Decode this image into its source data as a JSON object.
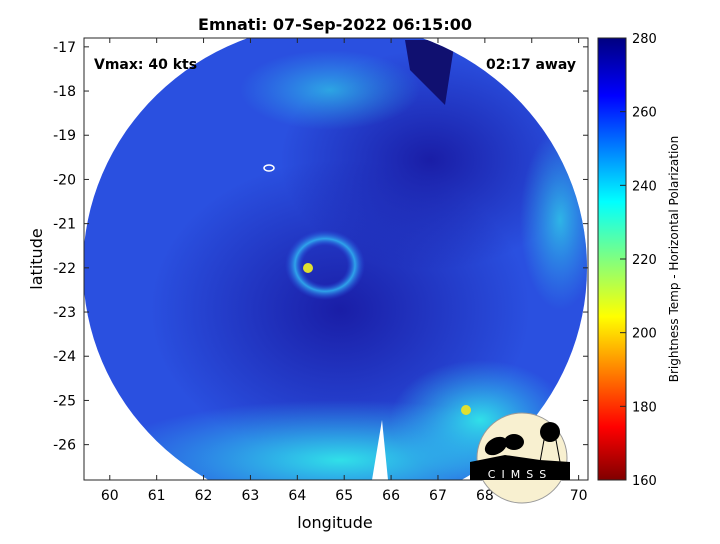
{
  "title": "Emnati: 07-Sep-2022 06:15:00",
  "vmax_label": "Vmax: 40 kts",
  "time_label": "02:17 away",
  "xlabel": "longitude",
  "ylabel": "latitude",
  "x_ticks": [
    "60",
    "61",
    "62",
    "63",
    "64",
    "65",
    "66",
    "67",
    "68",
    "69",
    "70"
  ],
  "y_ticks": [
    "-17",
    "-18",
    "-19",
    "-20",
    "-21",
    "-22",
    "-23",
    "-24",
    "-25",
    "-26"
  ],
  "xlim": [
    59.45,
    70.2
  ],
  "ylim": [
    -26.8,
    -16.8
  ],
  "colorbar": {
    "label": "Brightness Temp - Horizontal Polarization",
    "ticks": [
      "280",
      "260",
      "240",
      "220",
      "200",
      "180",
      "160"
    ],
    "range": [
      160,
      280
    ],
    "colormap": "jet"
  },
  "logo": {
    "text": "CIMSS"
  },
  "colors": {
    "background_swath": "#2a50e0",
    "dark_band": "#1a1aa0",
    "ring": "#20d0e8"
  }
}
